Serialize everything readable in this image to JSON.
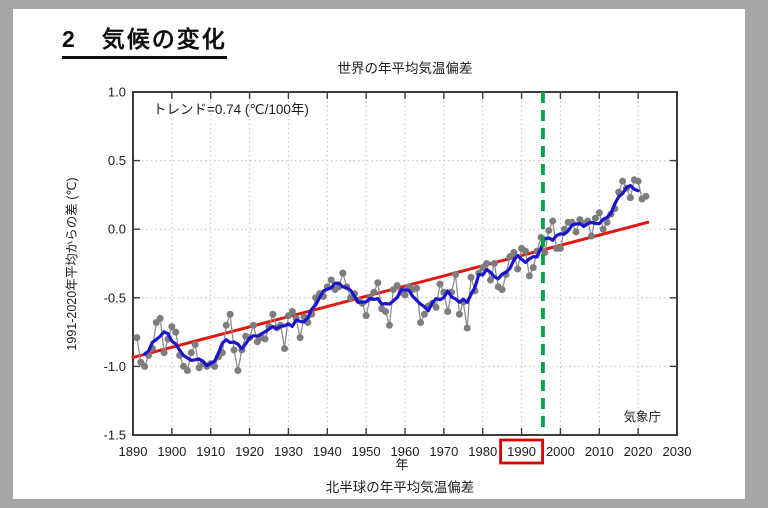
{
  "page": {
    "heading": "2　気候の変化",
    "bottom_caption": "北半球の年平均気温偏差"
  },
  "colors": {
    "canvas_bg": "#a6a6a6",
    "page_bg": "#ffffff",
    "axis": "#3c3c3c",
    "grid": "#c2c2c2",
    "annual_series": "#7d7d7d",
    "annual_line": "#8f8f8f",
    "moving_avg": "#1a15cc",
    "trend": "#e01812",
    "vline": "#00a344",
    "highlight_box": "#dd0000"
  },
  "chart_data": {
    "type": "line",
    "title": "世界の年平均気温偏差",
    "xlabel": "年",
    "ylabel": "1991-2020年平均からの差 (℃)",
    "trend_annotation": "トレンド=0.74 (℃/100年)",
    "source": "気象庁",
    "xlim": [
      1890,
      2030
    ],
    "ylim": [
      -1.5,
      1.0
    ],
    "x_ticks": [
      1890,
      1900,
      1910,
      1920,
      1930,
      1940,
      1950,
      1960,
      1970,
      1980,
      1990,
      2000,
      2010,
      2020,
      2030
    ],
    "y_tick_labels": [
      "1.0",
      "0.5",
      "0.0",
      "-0.5",
      "-1.0",
      "-1.5"
    ],
    "y_tick_values": [
      1.0,
      0.5,
      0.0,
      -0.5,
      -1.0,
      -1.5
    ],
    "grid": true,
    "legend_position": "none",
    "highlight": {
      "boxed_x_tick": 1990,
      "vline_year": 1995.5,
      "vline_style": "dashed"
    },
    "trend_line": {
      "x": [
        1890,
        2022.5
      ],
      "y": [
        -0.935,
        0.05
      ]
    },
    "series": [
      {
        "name": "annual-temperature-anomaly",
        "type": "scatter+line",
        "start_year": 1891,
        "end_year": 2022,
        "values": [
          -0.79,
          -0.97,
          -1.0,
          -0.92,
          -0.87,
          -0.68,
          -0.65,
          -0.9,
          -0.8,
          -0.71,
          -0.75,
          -0.92,
          -1.0,
          -1.03,
          -0.9,
          -0.84,
          -1.01,
          -0.98,
          -1.0,
          -0.98,
          -1.0,
          -0.93,
          -0.9,
          -0.7,
          -0.62,
          -0.88,
          -1.03,
          -0.88,
          -0.78,
          -0.79,
          -0.7,
          -0.82,
          -0.79,
          -0.8,
          -0.71,
          -0.62,
          -0.72,
          -0.7,
          -0.87,
          -0.63,
          -0.6,
          -0.65,
          -0.79,
          -0.64,
          -0.68,
          -0.62,
          -0.5,
          -0.47,
          -0.49,
          -0.42,
          -0.37,
          -0.44,
          -0.42,
          -0.32,
          -0.42,
          -0.5,
          -0.47,
          -0.52,
          -0.54,
          -0.63,
          -0.5,
          -0.46,
          -0.39,
          -0.58,
          -0.6,
          -0.7,
          -0.44,
          -0.41,
          -0.46,
          -0.48,
          -0.42,
          -0.44,
          -0.43,
          -0.68,
          -0.62,
          -0.56,
          -0.54,
          -0.57,
          -0.4,
          -0.46,
          -0.6,
          -0.46,
          -0.33,
          -0.62,
          -0.53,
          -0.72,
          -0.35,
          -0.45,
          -0.32,
          -0.28,
          -0.25,
          -0.37,
          -0.25,
          -0.42,
          -0.44,
          -0.33,
          -0.2,
          -0.17,
          -0.29,
          -0.14,
          -0.16,
          -0.34,
          -0.28,
          -0.16,
          -0.06,
          -0.17,
          -0.01,
          0.06,
          -0.14,
          -0.14,
          0.0,
          0.05,
          0.05,
          -0.02,
          0.07,
          0.04,
          0.06,
          -0.05,
          0.08,
          0.12,
          0.0,
          0.05,
          0.11,
          0.15,
          0.27,
          0.35,
          0.3,
          0.23,
          0.36,
          0.35,
          0.22,
          0.24
        ]
      },
      {
        "name": "5-year-running-mean",
        "type": "line",
        "derived_from": "annual-temperature-anomaly",
        "window": 5
      }
    ]
  }
}
